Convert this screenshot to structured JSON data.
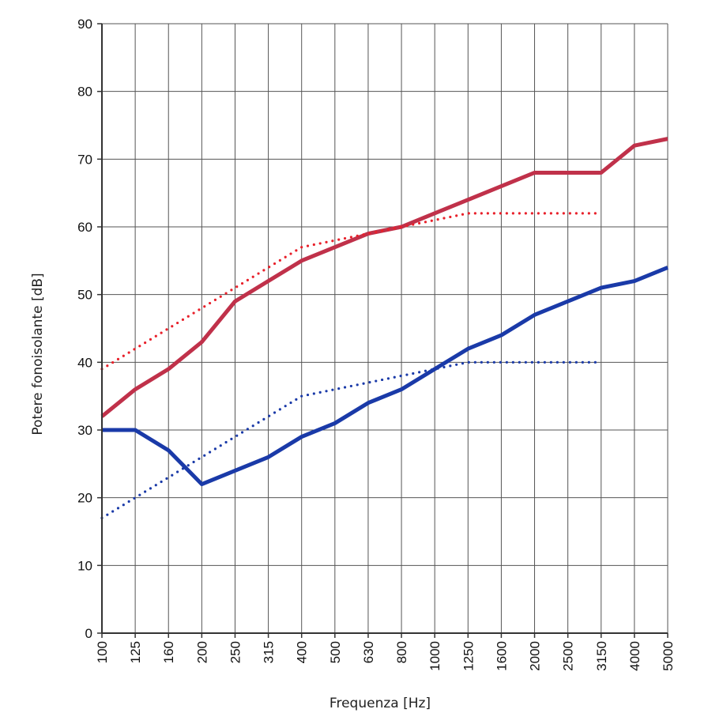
{
  "chart_data": {
    "type": "line",
    "title": "",
    "xlabel": "Frequenza [Hz]",
    "ylabel": "Potere fonoisolante [dB]",
    "categories": [
      "100",
      "125",
      "160",
      "200",
      "250",
      "315",
      "400",
      "500",
      "630",
      "800",
      "1000",
      "1250",
      "1600",
      "2000",
      "2500",
      "3150",
      "4000",
      "5000"
    ],
    "ylim": [
      0,
      90
    ],
    "yticks": [
      0,
      10,
      20,
      30,
      40,
      50,
      60,
      70,
      80,
      90
    ],
    "grid": true,
    "series": [
      {
        "color": "#c0314a",
        "style": "solid",
        "values": [
          32,
          36,
          39,
          43,
          49,
          52,
          55,
          57,
          59,
          60,
          62,
          64,
          66,
          68,
          68,
          68,
          72,
          73
        ]
      },
      {
        "color": "#e8202a",
        "style": "dotted",
        "values": [
          39,
          42,
          45,
          48,
          51,
          54,
          57,
          58,
          59,
          60,
          61,
          62,
          62,
          62,
          62,
          62,
          null,
          null
        ]
      },
      {
        "color": "#1a3aa8",
        "style": "solid",
        "values": [
          30,
          30,
          27,
          22,
          24,
          26,
          29,
          31,
          34,
          36,
          39,
          42,
          44,
          47,
          49,
          51,
          52,
          54
        ]
      },
      {
        "color": "#1a3aa8",
        "style": "dotted",
        "values": [
          17,
          20,
          23,
          26,
          29,
          32,
          35,
          36,
          37,
          38,
          39,
          40,
          40,
          40,
          40,
          40,
          null,
          null
        ]
      }
    ]
  }
}
